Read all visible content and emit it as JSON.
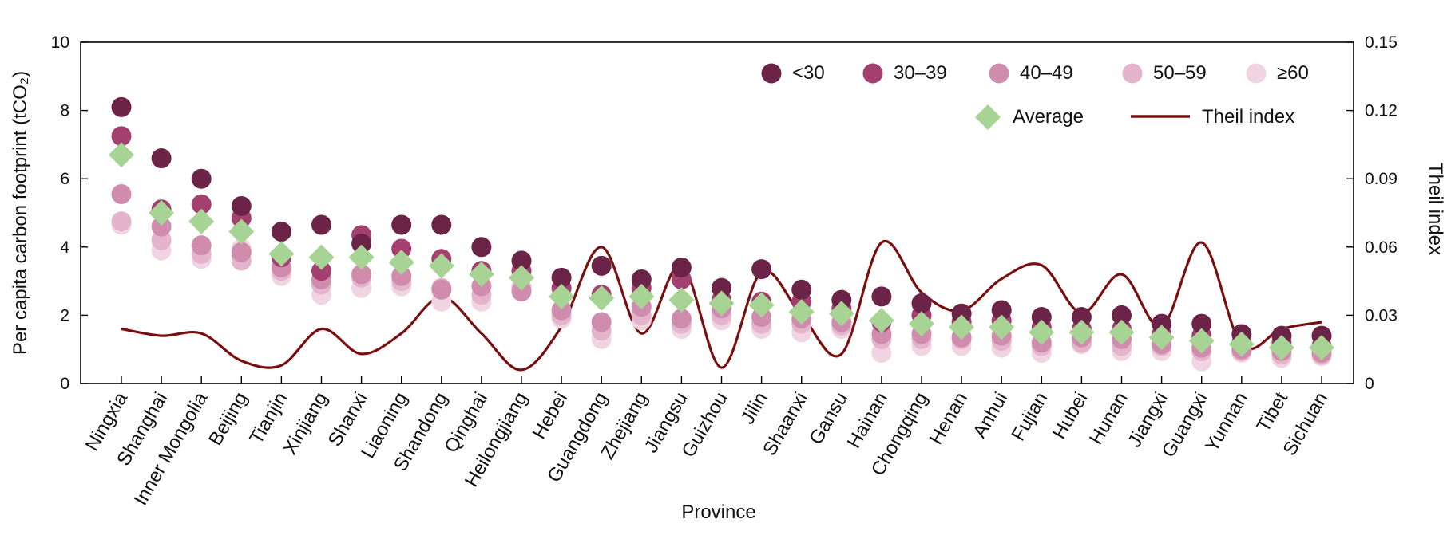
{
  "chart_data": {
    "type": "scatter",
    "title": "",
    "xlabel": "Province",
    "ylabel": "Per capita carbon footprint (tCO₂)",
    "y2label": "Theil index",
    "ylim": [
      0,
      10
    ],
    "y2lim": [
      0,
      0.15
    ],
    "yticks": [
      0,
      2,
      4,
      6,
      8,
      10
    ],
    "y2ticks": [
      "0",
      "0.03",
      "0.06",
      "0.09",
      "0.12",
      "0.15"
    ],
    "y2tick_values": [
      0,
      0.03,
      0.06,
      0.09,
      0.12,
      0.15
    ],
    "legend_placement": "top-right",
    "grid": false,
    "categories": [
      "Ningxia",
      "Shanghai",
      "Inner Mongolia",
      "Beijing",
      "Tianjin",
      "Xinjiang",
      "Shanxi",
      "Liaoning",
      "Shandong",
      "Qinghai",
      "Heilongjiang",
      "Hebei",
      "Guangdong",
      "Zhejiang",
      "Jiangsu",
      "Guizhou",
      "Jilin",
      "Shaanxi",
      "Gansu",
      "Hainan",
      "Chongqing",
      "Henan",
      "Anhui",
      "Fujian",
      "Hubei",
      "Hunan",
      "Jiangxi",
      "Guangxi",
      "Yunnan",
      "Tibet",
      "Sichuan"
    ],
    "series": [
      {
        "name": "<30",
        "marker": "circle",
        "color": "#6b2447",
        "values": [
          8.1,
          6.6,
          6.0,
          5.2,
          4.45,
          4.65,
          4.1,
          4.65,
          4.65,
          4.0,
          3.6,
          3.1,
          3.45,
          3.05,
          3.4,
          2.8,
          3.35,
          2.75,
          2.45,
          2.55,
          2.35,
          2.05,
          2.15,
          1.95,
          1.95,
          2.0,
          1.75,
          1.75,
          1.45,
          1.4,
          1.4
        ]
      },
      {
        "name": "30–39",
        "marker": "circle",
        "color": "#a3406f",
        "values": [
          7.25,
          5.1,
          5.25,
          4.85,
          3.7,
          3.3,
          4.35,
          3.95,
          3.65,
          3.3,
          3.3,
          2.8,
          2.6,
          2.8,
          3.05,
          2.45,
          2.4,
          2.4,
          2.2,
          1.8,
          2.0,
          1.8,
          1.85,
          1.65,
          1.6,
          1.6,
          1.45,
          1.4,
          1.2,
          1.2,
          1.1
        ]
      },
      {
        "name": "40–49",
        "marker": "circle",
        "color": "#cf8cad",
        "values": [
          5.55,
          4.6,
          4.05,
          3.85,
          3.4,
          3.05,
          3.2,
          3.15,
          2.75,
          2.85,
          2.7,
          2.15,
          1.8,
          2.25,
          1.9,
          2.2,
          1.95,
          1.9,
          1.8,
          1.45,
          1.45,
          1.35,
          1.4,
          1.2,
          1.35,
          1.3,
          1.15,
          1.05,
          1.0,
          0.95,
          0.9
        ]
      },
      {
        "name": "50–59",
        "marker": "circle",
        "color": "#e4b4cc",
        "values": [
          4.75,
          4.2,
          3.8,
          3.6,
          3.3,
          2.9,
          3.1,
          3.0,
          2.8,
          2.6,
          2.8,
          2.0,
          1.55,
          2.0,
          1.75,
          2.0,
          1.75,
          1.75,
          1.7,
          1.3,
          1.3,
          1.3,
          1.25,
          1.1,
          1.2,
          1.1,
          1.1,
          0.95,
          0.95,
          0.85,
          0.85
        ]
      },
      {
        "name": "≥60",
        "marker": "circle",
        "color": "#f1d4e1",
        "values": [
          4.65,
          3.9,
          3.65,
          3.95,
          3.15,
          2.6,
          2.8,
          2.85,
          2.4,
          2.4,
          2.8,
          1.9,
          1.3,
          1.85,
          1.6,
          1.85,
          1.6,
          1.5,
          1.6,
          0.9,
          1.1,
          1.1,
          1.05,
          0.9,
          1.15,
          0.95,
          0.95,
          0.65,
          0.9,
          0.75,
          0.8
        ]
      },
      {
        "name": "Average",
        "marker": "diamond",
        "color": "#a7d394",
        "values": [
          6.7,
          5.0,
          4.75,
          4.45,
          3.8,
          3.7,
          3.7,
          3.55,
          3.45,
          3.2,
          3.1,
          2.55,
          2.5,
          2.55,
          2.45,
          2.35,
          2.3,
          2.1,
          2.05,
          1.85,
          1.75,
          1.65,
          1.65,
          1.5,
          1.5,
          1.5,
          1.35,
          1.25,
          1.15,
          1.05,
          1.05
        ]
      },
      {
        "name": "Theil index",
        "marker": "line",
        "color": "#7a0e0e",
        "axis": "right",
        "values": [
          0.024,
          0.021,
          0.022,
          0.01,
          0.008,
          0.024,
          0.013,
          0.022,
          0.038,
          0.022,
          0.006,
          0.025,
          0.06,
          0.022,
          0.052,
          0.007,
          0.049,
          0.03,
          0.013,
          0.062,
          0.04,
          0.032,
          0.046,
          0.052,
          0.031,
          0.048,
          0.025,
          0.062,
          0.017,
          0.024,
          0.027
        ]
      }
    ]
  }
}
